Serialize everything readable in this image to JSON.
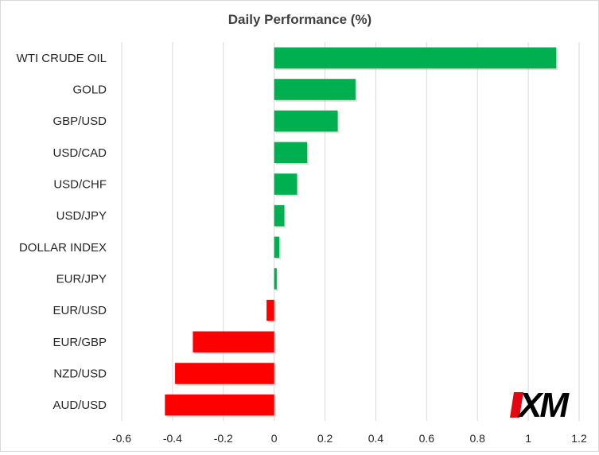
{
  "chart_data": {
    "type": "bar",
    "orientation": "horizontal",
    "title": "Daily Performance  (%)",
    "categories": [
      "WTI CRUDE OIL",
      "GOLD",
      "GBP/USD",
      "USD/CAD",
      "USD/CHF",
      "USD/JPY",
      "DOLLAR INDEX",
      "EUR/JPY",
      "EUR/USD",
      "EUR/GBP",
      "NZD/USD",
      "AUD/USD"
    ],
    "values": [
      1.11,
      0.32,
      0.25,
      0.13,
      0.09,
      0.04,
      0.02,
      0.01,
      -0.03,
      -0.32,
      -0.39,
      -0.43
    ],
    "xlim": [
      -0.6,
      1.2
    ],
    "xticks": [
      -0.6,
      -0.4,
      -0.2,
      0,
      0.2,
      0.4,
      0.6,
      0.8,
      1,
      1.2
    ],
    "xtick_labels": [
      "-0.6",
      "-0.4",
      "-0.2",
      "0",
      "0.2",
      "0.4",
      "0.6",
      "0.8",
      "1",
      "1.2"
    ],
    "xlabel": "",
    "ylabel": "",
    "grid": "vertical",
    "legend": "none",
    "colors": {
      "positive": "#00b050",
      "negative": "#ff0000",
      "grid": "#d9d9d9"
    }
  },
  "logo": {
    "text": "XM",
    "mark_color": "#e30613"
  }
}
